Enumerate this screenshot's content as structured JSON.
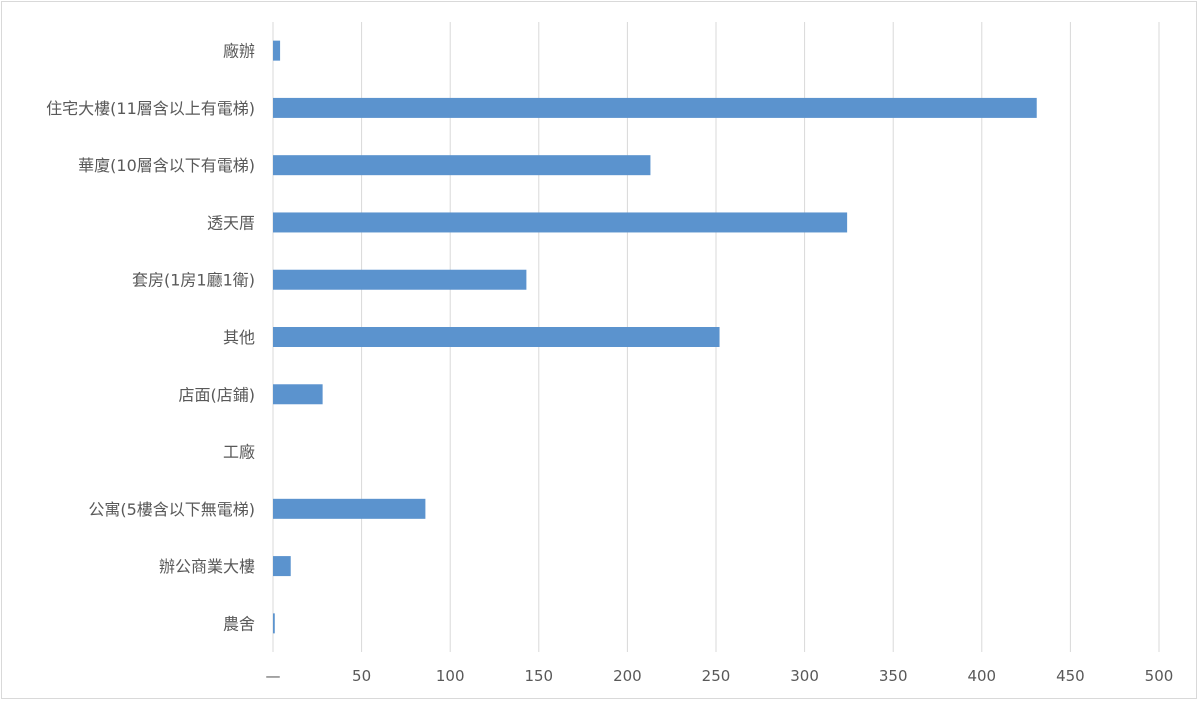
{
  "chart_data": {
    "type": "bar",
    "orientation": "horizontal",
    "categories": [
      "廠辦",
      "住宅大樓(11層含以上有電梯)",
      "華廈(10層含以下有電梯)",
      "透天厝",
      "套房(1房1廳1衛)",
      "其他",
      "店面(店鋪)",
      "工廠",
      "公寓(5樓含以下無電梯)",
      "辦公商業大樓",
      "農舍"
    ],
    "values": [
      4,
      431,
      213,
      324,
      143,
      252,
      28,
      0,
      86,
      10,
      1
    ],
    "xlim": [
      0,
      500
    ],
    "xticks": [
      "—",
      "50",
      "100",
      "150",
      "200",
      "250",
      "300",
      "350",
      "400",
      "450",
      "500"
    ],
    "bar_color": "#5b93ce",
    "grid": true
  }
}
